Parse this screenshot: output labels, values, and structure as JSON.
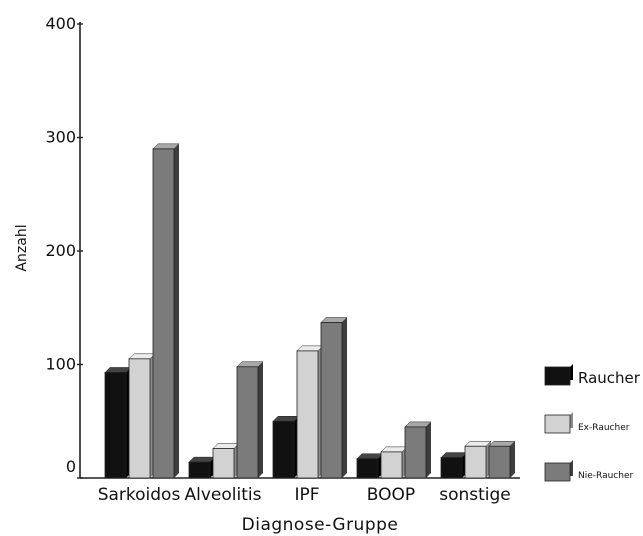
{
  "chart_data": {
    "type": "bar",
    "categories": [
      "Sarkoidos",
      "Alveolitis",
      "IPF",
      "BOOP",
      "sonstige"
    ],
    "series": [
      {
        "name": "Raucher",
        "values": [
          93,
          14,
          50,
          17,
          18
        ],
        "color": "#111111"
      },
      {
        "name": "Ex-Raucher",
        "values": [
          105,
          26,
          112,
          23,
          28
        ],
        "color": "#d2d2d2"
      },
      {
        "name": "Nie-Raucher",
        "values": [
          290,
          98,
          137,
          45,
          28
        ],
        "color": "#7b7b7b"
      }
    ],
    "xlabel": "Diagnose-Gruppe",
    "ylabel": "Anzahl",
    "ylim": [
      0,
      400
    ],
    "yticks": [
      0,
      100,
      200,
      300,
      400
    ],
    "grid": false,
    "legend": "right"
  }
}
